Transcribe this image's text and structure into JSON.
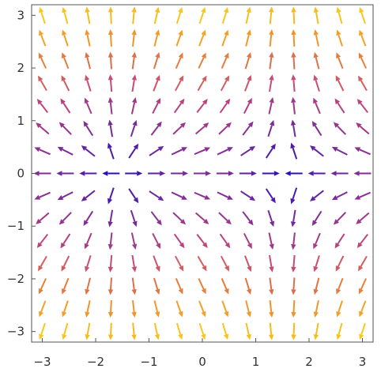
{
  "chart_data": {
    "type": "vector_field",
    "title": "",
    "xlabel": "",
    "ylabel": "",
    "xlim": [
      -3.2,
      3.2
    ],
    "ylim": [
      -3.2,
      3.2
    ],
    "x_ticks": [
      -3,
      -2,
      -1,
      0,
      1,
      2,
      3
    ],
    "y_ticks": [
      -3,
      -2,
      -1,
      0,
      1,
      2,
      3
    ],
    "x_tick_labels": [
      "−3",
      "−2",
      "−1",
      "0",
      "1",
      "2",
      "3"
    ],
    "y_tick_labels": [
      "−3",
      "−2",
      "−1",
      "0",
      "1",
      "2",
      "3"
    ],
    "grid": false,
    "legend": "none",
    "field": {
      "components": [
        "cos(x)",
        "y"
      ],
      "x_range": [
        -3.0,
        3.0
      ],
      "y_range": [
        -3.0,
        3.0
      ],
      "samples_x": 15,
      "samples_y": 15,
      "coloring": "magnitude"
    },
    "colors": {
      "low": "#2b0fb8",
      "mid": "#c2447a",
      "high_mid": "#f08a2c",
      "high": "#f8c81c"
    }
  }
}
